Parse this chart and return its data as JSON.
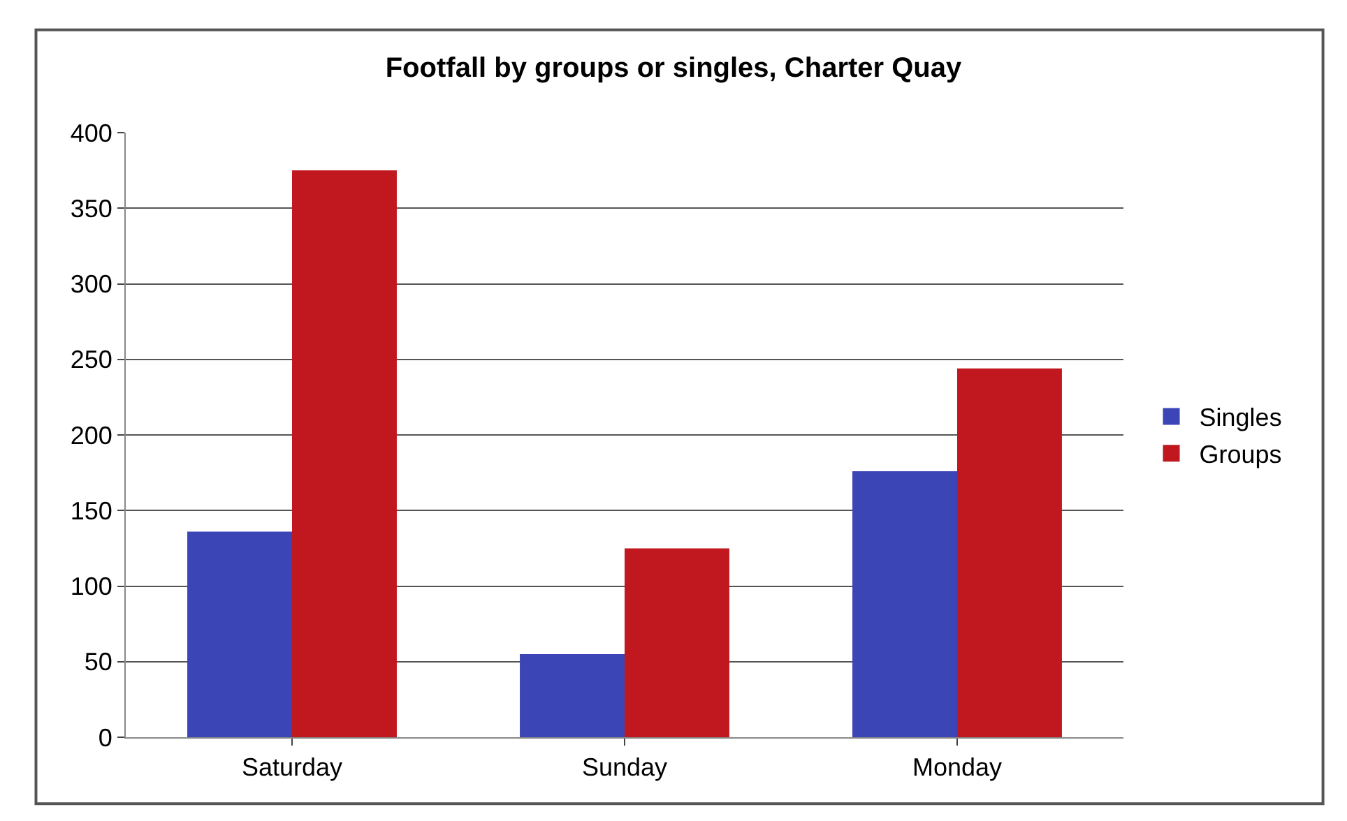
{
  "chart_data": {
    "type": "bar",
    "title": "Footfall by groups or singles, Charter Quay",
    "categories": [
      "Saturday",
      "Sunday",
      "Monday"
    ],
    "series": [
      {
        "name": "Singles",
        "color": "#3b45b5",
        "values": [
          136,
          55,
          176
        ]
      },
      {
        "name": "Groups",
        "color": "#c0181e",
        "values": [
          375,
          125,
          244
        ]
      }
    ],
    "ylim": [
      0,
      400
    ],
    "yticks": [
      0,
      50,
      100,
      150,
      200,
      250,
      300,
      350,
      400
    ],
    "grid": "y",
    "legend": "right"
  }
}
